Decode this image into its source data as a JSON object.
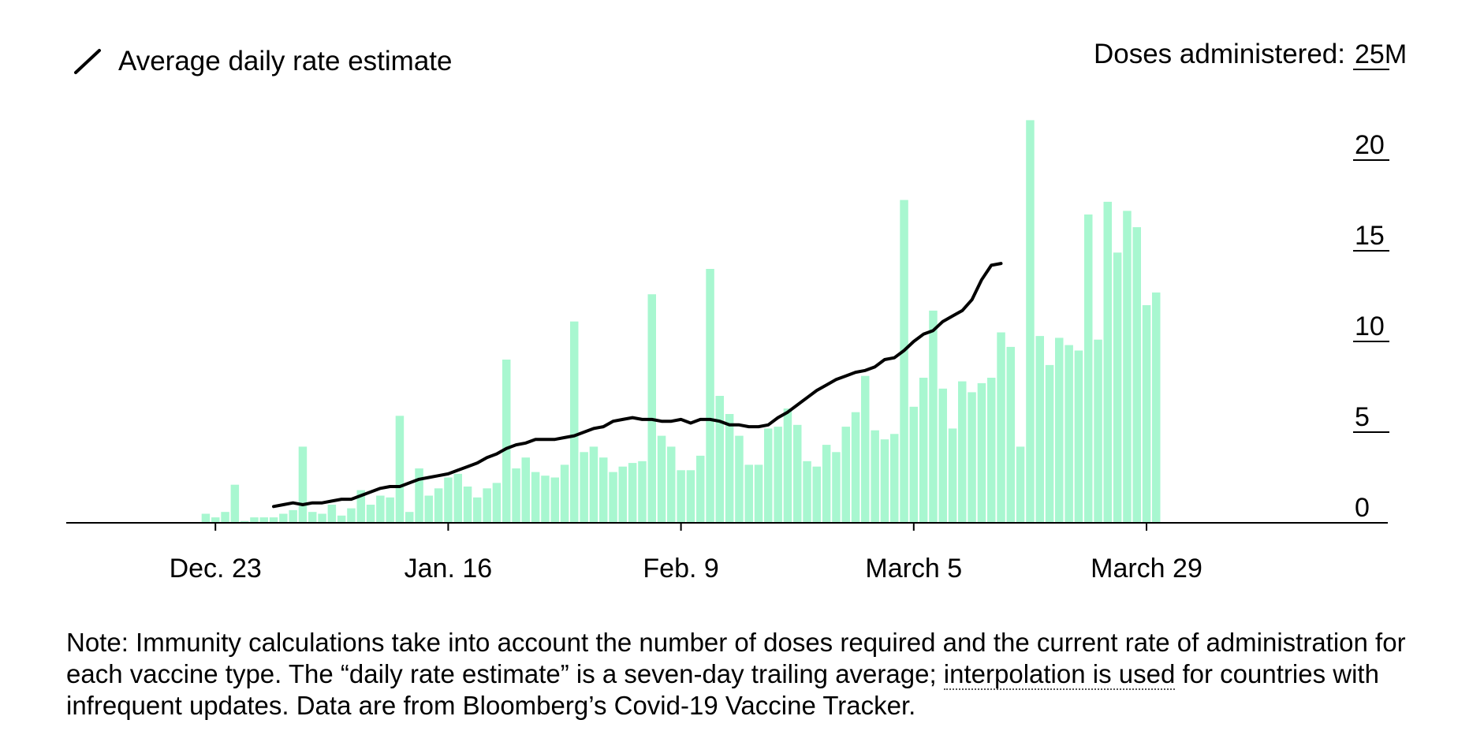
{
  "legend": {
    "label": "Average daily rate estimate"
  },
  "note": {
    "part1": "Note: Immunity calculations take into account the number of doses required and the current rate of administration for each vaccine type. The “daily rate estimate” is a seven-day trailing average; ",
    "link": "interpolation is used",
    "part2": " for countries with infrequent updates. Data are from Bloomberg’s Covid-19 Vaccine Tracker."
  },
  "colors": {
    "bar": "#a8f7d0",
    "line": "#000000",
    "axis": "#000000"
  },
  "chart_data": {
    "type": "bar",
    "ylabel": "Doses administered:",
    "yunit": "M",
    "ylim": [
      0,
      25
    ],
    "yticks": [
      0,
      5,
      10,
      15,
      20,
      25
    ],
    "ytick_labels": [
      "0",
      "5",
      "10",
      "15",
      "20",
      "25M"
    ],
    "grid": false,
    "legend_position": "top-left",
    "x_start": "Dec. 15",
    "x_end": "March 29",
    "xticks": [
      {
        "label": "Dec. 23",
        "index": 8
      },
      {
        "label": "Jan. 16",
        "index": 32
      },
      {
        "label": "Feb. 9",
        "index": 56
      },
      {
        "label": "March 5",
        "index": 80
      },
      {
        "label": "March 29",
        "index": 104
      }
    ],
    "series": [
      {
        "name": "Doses administered",
        "type": "bar",
        "values": [
          0,
          0,
          0,
          0,
          0,
          0,
          0,
          0.5,
          0.3,
          0.6,
          2.1,
          0.1,
          0.3,
          0.3,
          0.3,
          0.5,
          0.7,
          4.2,
          0.6,
          0.5,
          1.0,
          0.4,
          0.8,
          1.8,
          1.0,
          1.5,
          1.4,
          5.9,
          0.6,
          3.0,
          1.5,
          1.9,
          2.5,
          2.7,
          2.0,
          1.4,
          1.9,
          2.2,
          9.0,
          3.0,
          3.6,
          2.8,
          2.6,
          2.5,
          3.2,
          11.1,
          3.9,
          4.2,
          3.6,
          2.8,
          3.1,
          3.3,
          3.4,
          12.6,
          4.8,
          4.2,
          2.9,
          2.9,
          3.7,
          14.0,
          7.0,
          6.0,
          4.8,
          3.2,
          3.2,
          5.2,
          5.3,
          6.3,
          5.4,
          3.4,
          3.1,
          4.3,
          3.9,
          5.3,
          6.1,
          8.1,
          5.1,
          4.6,
          4.9,
          17.8,
          6.4,
          8.0,
          11.7,
          7.4,
          5.2,
          7.8,
          7.2,
          7.7,
          8.0,
          10.5,
          9.7,
          4.2,
          22.2,
          10.3,
          8.7,
          10.2,
          9.8,
          9.5,
          17.0,
          10.1,
          17.7,
          14.9,
          17.2,
          16.3,
          12.0,
          12.7
        ],
        "color": "#a8f7d0"
      },
      {
        "name": "Average daily rate estimate",
        "type": "line",
        "start_index": 14,
        "values": [
          0.9,
          1.0,
          1.1,
          1.0,
          1.1,
          1.1,
          1.2,
          1.3,
          1.3,
          1.5,
          1.7,
          1.9,
          2.0,
          2.0,
          2.2,
          2.4,
          2.5,
          2.6,
          2.7,
          2.9,
          3.1,
          3.3,
          3.6,
          3.8,
          4.1,
          4.3,
          4.4,
          4.6,
          4.6,
          4.6,
          4.7,
          4.8,
          5.0,
          5.2,
          5.3,
          5.6,
          5.7,
          5.8,
          5.7,
          5.7,
          5.6,
          5.6,
          5.7,
          5.5,
          5.7,
          5.7,
          5.6,
          5.4,
          5.4,
          5.3,
          5.3,
          5.4,
          5.8,
          6.1,
          6.5,
          6.9,
          7.3,
          7.6,
          7.9,
          8.1,
          8.3,
          8.4,
          8.6,
          9.0,
          9.1,
          9.5,
          10.0,
          10.4,
          10.6,
          11.1,
          11.4,
          11.7,
          12.3,
          13.4,
          14.2,
          14.3
        ],
        "color": "#000000"
      }
    ]
  }
}
